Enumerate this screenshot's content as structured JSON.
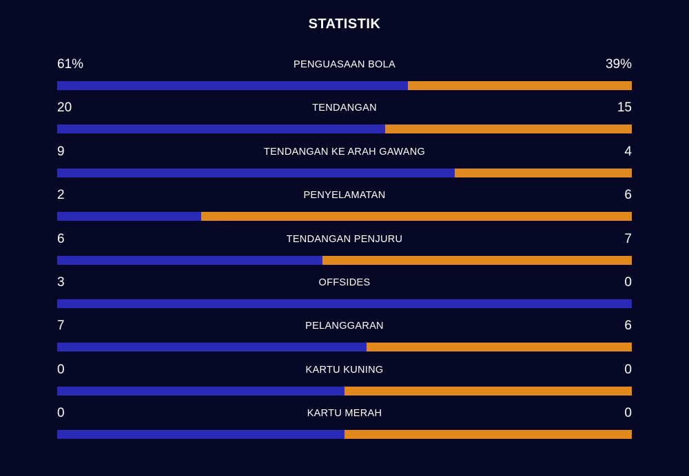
{
  "title": "STATISTIK",
  "colors": {
    "background": "#070726",
    "home": "#2a2ab7",
    "away": "#e0891f",
    "text": "#ffffff"
  },
  "stats": [
    {
      "label": "PENGUASAAN BOLA",
      "home": "61%",
      "away": "39%",
      "home_share": 0.61
    },
    {
      "label": "TENDANGAN",
      "home": "20",
      "away": "15",
      "home_share": 0.571
    },
    {
      "label": "TENDANGAN KE ARAH GAWANG",
      "home": "9",
      "away": "4",
      "home_share": 0.692
    },
    {
      "label": "PENYELAMATAN",
      "home": "2",
      "away": "6",
      "home_share": 0.25
    },
    {
      "label": "TENDANGAN PENJURU",
      "home": "6",
      "away": "7",
      "home_share": 0.462
    },
    {
      "label": "OFFSIDES",
      "home": "3",
      "away": "0",
      "home_share": 1.0
    },
    {
      "label": "PELANGGARAN",
      "home": "7",
      "away": "6",
      "home_share": 0.538
    },
    {
      "label": "KARTU KUNING",
      "home": "0",
      "away": "0",
      "home_share": 0.5
    },
    {
      "label": "KARTU MERAH",
      "home": "0",
      "away": "0",
      "home_share": 0.5
    }
  ]
}
